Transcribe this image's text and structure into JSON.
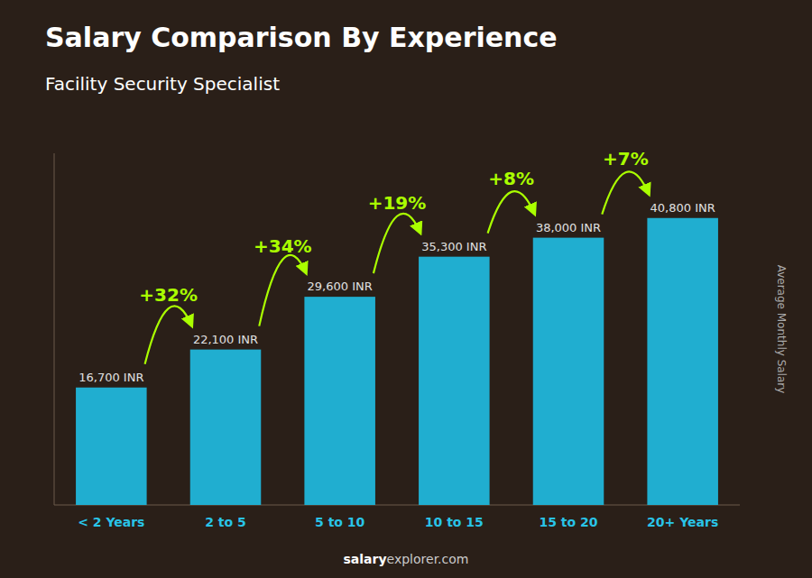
{
  "chart_data": {
    "type": "bar",
    "title": "Salary Comparison By Experience",
    "subtitle": "Facility Security Specialist",
    "ylabel": "Average Monthly Salary",
    "watermark": [
      "salary",
      "explorer.com"
    ],
    "categories": [
      "< 2 Years",
      "2 to 5",
      "5 to 10",
      "10 to 15",
      "15 to 20",
      "20+ Years"
    ],
    "values": [
      16700,
      22100,
      29600,
      35300,
      38000,
      40800
    ],
    "value_labels": [
      "16,700 INR",
      "22,100 INR",
      "29,600 INR",
      "35,300 INR",
      "38,000 INR",
      "40,800 INR"
    ],
    "data_labels": true,
    "color": "#20aed0",
    "annotations": [
      {
        "text": "+32%",
        "color": "#aaff00"
      },
      {
        "text": "+34%",
        "color": "#aaff00"
      },
      {
        "text": "+19%",
        "color": "#aaff00"
      },
      {
        "text": "+8%",
        "color": "#aaff00"
      },
      {
        "text": "+7%",
        "color": "#aaff00"
      }
    ],
    "ylim": [
      0,
      50000
    ],
    "tick_labels": "x",
    "grid": false
  }
}
